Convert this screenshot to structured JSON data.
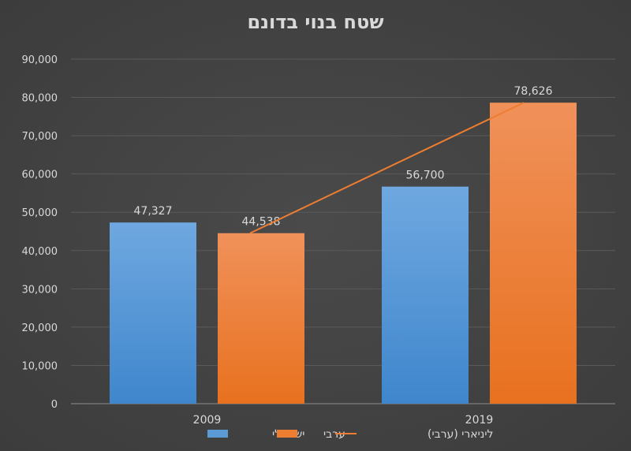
{
  "chart_data": {
    "type": "bar",
    "title": "שטח בנוי בדונם",
    "categories": [
      "2009",
      "2019"
    ],
    "series": [
      {
        "name": "ישראלי",
        "values": [
          47327,
          56700
        ],
        "color": "#5b9bd5",
        "labels": [
          "47,327",
          "56,700"
        ]
      },
      {
        "name": "ערבי",
        "values": [
          44538,
          78626
        ],
        "color": "#ed7d31",
        "labels": [
          "44,538",
          "78,626"
        ]
      }
    ],
    "trendline": {
      "name": "ליניארי (ערבי)",
      "type": "linear",
      "of_series": "ערבי",
      "color": "#ed7d31"
    },
    "ylim": [
      0,
      90000
    ],
    "yticks": [
      0,
      10000,
      20000,
      30000,
      40000,
      50000,
      60000,
      70000,
      80000,
      90000
    ],
    "ytick_labels": [
      "0",
      "10,000",
      "20,000",
      "30,000",
      "40,000",
      "50,000",
      "60,000",
      "70,000",
      "80,000",
      "90,000"
    ],
    "grid": true,
    "legend": "bottom",
    "xlabel": "",
    "ylabel": ""
  }
}
